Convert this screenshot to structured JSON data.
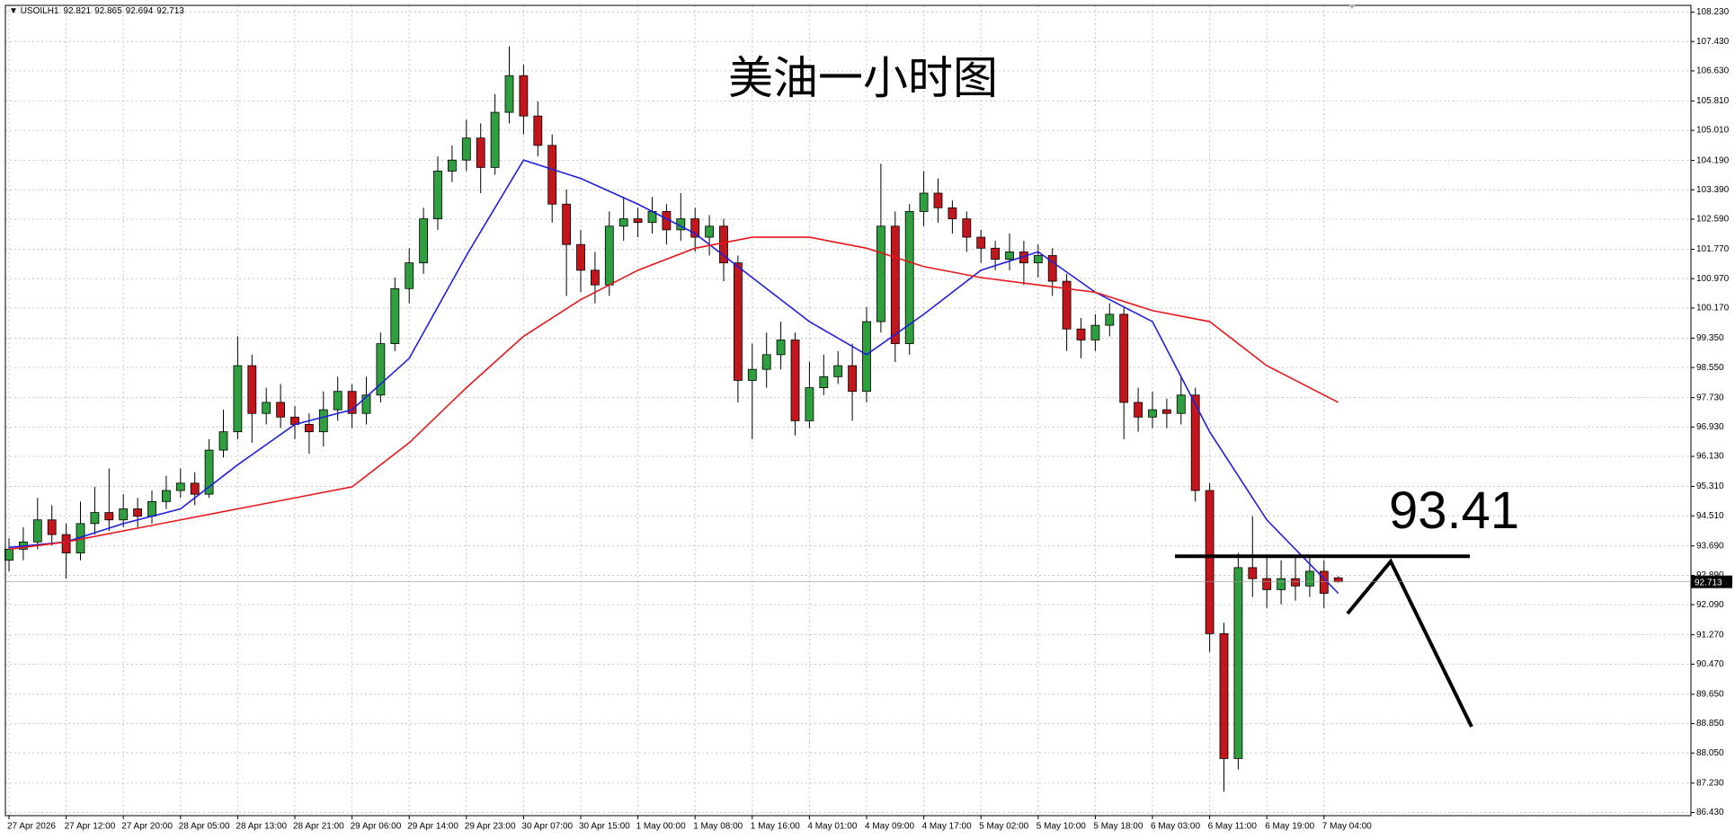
{
  "chart_data": {
    "type": "candlestick",
    "symbol": "USOILH1",
    "title": "美油一小时图",
    "categories": [
      "27 Apr 2026",
      null,
      null,
      null,
      "27 Apr 12:00",
      null,
      null,
      null,
      "27 Apr 20:00",
      null,
      null,
      null,
      "28 Apr 05:00",
      null,
      null,
      null,
      "28 Apr 13:00",
      null,
      null,
      null,
      "28 Apr 21:00",
      null,
      null,
      null,
      "29 Apr 06:00",
      null,
      null,
      null,
      "29 Apr 14:00",
      null,
      null,
      null,
      "29 Apr 23:00",
      null,
      null,
      null,
      "30 Apr 07:00",
      null,
      null,
      null,
      "30 Apr 15:00",
      null,
      null,
      null,
      "1 May 00:00",
      null,
      null,
      null,
      "1 May 08:00",
      null,
      null,
      null,
      "1 May 16:00",
      null,
      null,
      null,
      "4 May 01:00",
      null,
      null,
      null,
      "4 May 09:00",
      null,
      null,
      null,
      "4 May 17:00",
      null,
      null,
      null,
      "5 May 02:00",
      null,
      null,
      null,
      "5 May 10:00",
      null,
      null,
      null,
      "5 May 18:00",
      null,
      null,
      null,
      "6 May 03:00",
      null,
      null,
      null,
      "6 May 11:00",
      null,
      null,
      null,
      "6 May 19:00",
      null,
      null,
      null,
      "7 May 04:00",
      null
    ],
    "open": [
      93.3,
      93.6,
      93.8,
      94.4,
      94.0,
      93.5,
      94.3,
      94.6,
      94.4,
      94.7,
      94.5,
      94.9,
      95.2,
      95.4,
      95.1,
      96.3,
      96.8,
      98.6,
      97.3,
      97.6,
      97.2,
      97.0,
      96.8,
      97.4,
      97.9,
      97.3,
      97.8,
      99.2,
      100.7,
      101.4,
      102.6,
      103.9,
      104.2,
      104.8,
      104.0,
      105.5,
      106.5,
      105.4,
      104.6,
      103.0,
      101.9,
      101.2,
      100.8,
      102.4,
      102.6,
      102.5,
      102.8,
      102.3,
      102.6,
      102.1,
      102.4,
      101.4,
      98.2,
      98.5,
      98.9,
      99.3,
      97.1,
      98.0,
      98.3,
      98.6,
      97.9,
      99.8,
      102.4,
      99.2,
      102.8,
      103.3,
      102.9,
      102.6,
      102.1,
      101.8,
      101.5,
      101.7,
      101.4,
      101.6,
      100.9,
      99.6,
      99.3,
      99.7,
      100.0,
      97.6,
      97.2,
      97.4,
      97.3,
      97.8,
      95.2,
      91.3,
      87.9,
      93.1,
      92.8,
      92.5,
      92.8,
      92.6,
      93.0,
      92.821
    ],
    "high": [
      93.9,
      94.2,
      95.0,
      94.8,
      94.3,
      94.9,
      95.3,
      95.8,
      95.1,
      95.0,
      95.2,
      95.6,
      95.8,
      95.7,
      96.6,
      97.4,
      99.4,
      98.9,
      98.0,
      98.1,
      97.5,
      97.3,
      97.9,
      98.3,
      98.1,
      98.3,
      99.5,
      101.0,
      101.8,
      102.9,
      104.3,
      104.6,
      105.3,
      105.2,
      106.0,
      107.3,
      106.8,
      105.8,
      104.9,
      103.4,
      102.3,
      101.7,
      102.8,
      103.2,
      102.9,
      103.2,
      103.0,
      103.3,
      102.9,
      102.7,
      102.6,
      101.6,
      99.2,
      99.5,
      99.8,
      99.5,
      98.7,
      98.9,
      99.0,
      99.2,
      100.2,
      104.1,
      102.8,
      103.0,
      103.9,
      103.7,
      103.1,
      102.8,
      102.3,
      102.0,
      102.2,
      102.0,
      101.9,
      101.8,
      101.1,
      99.9,
      100.0,
      100.3,
      100.2,
      98.0,
      97.9,
      97.7,
      98.3,
      98.0,
      95.4,
      91.6,
      93.5,
      94.5,
      93.4,
      93.3,
      93.4,
      93.4,
      93.3,
      92.865
    ],
    "low": [
      93.0,
      93.3,
      93.6,
      93.7,
      92.8,
      93.3,
      94.0,
      94.1,
      94.2,
      94.2,
      94.3,
      94.7,
      95.0,
      94.8,
      95.0,
      96.1,
      96.6,
      96.5,
      97.0,
      96.9,
      96.6,
      96.2,
      96.4,
      97.1,
      96.9,
      97.0,
      97.6,
      99.0,
      100.3,
      101.1,
      102.3,
      103.6,
      103.9,
      103.3,
      103.8,
      105.2,
      104.9,
      104.3,
      102.5,
      100.5,
      100.6,
      100.3,
      100.5,
      102.0,
      102.1,
      102.2,
      101.9,
      102.0,
      101.7,
      101.6,
      100.9,
      97.6,
      96.6,
      98.0,
      98.5,
      96.7,
      96.9,
      97.8,
      98.1,
      97.1,
      97.6,
      99.5,
      98.7,
      98.9,
      102.4,
      102.5,
      102.2,
      101.7,
      101.4,
      101.2,
      101.2,
      100.8,
      101.0,
      100.5,
      99.0,
      98.8,
      99.0,
      99.4,
      96.6,
      96.8,
      96.9,
      96.9,
      97.0,
      94.9,
      90.8,
      87.0,
      87.6,
      92.3,
      92.0,
      92.1,
      92.2,
      92.3,
      92.0,
      92.694
    ],
    "close": [
      93.6,
      93.8,
      94.4,
      94.0,
      93.5,
      94.3,
      94.6,
      94.4,
      94.7,
      94.5,
      94.9,
      95.2,
      95.4,
      95.1,
      96.3,
      96.8,
      98.6,
      97.3,
      97.6,
      97.2,
      97.0,
      96.8,
      97.4,
      97.9,
      97.3,
      97.8,
      99.2,
      100.7,
      101.4,
      102.6,
      103.9,
      104.2,
      104.8,
      104.0,
      105.5,
      106.5,
      105.4,
      104.6,
      103.0,
      101.9,
      101.2,
      100.8,
      102.4,
      102.6,
      102.5,
      102.8,
      102.3,
      102.6,
      102.1,
      102.4,
      101.4,
      98.2,
      98.5,
      98.9,
      99.3,
      97.1,
      98.0,
      98.3,
      98.6,
      97.9,
      99.8,
      102.4,
      99.2,
      102.8,
      103.3,
      102.9,
      102.6,
      102.1,
      101.8,
      101.5,
      101.7,
      101.4,
      101.6,
      100.9,
      99.6,
      99.3,
      99.7,
      100.0,
      97.6,
      97.2,
      97.4,
      97.3,
      97.8,
      95.2,
      91.3,
      87.9,
      93.1,
      92.8,
      92.5,
      92.8,
      92.6,
      93.0,
      92.4,
      92.713
    ],
    "up_color": "#2e9e3e",
    "down_color": "#c0161c",
    "lines": [
      {
        "color": "#1f1fe0",
        "x": [
          0,
          4,
          8,
          12,
          16,
          20,
          24,
          28,
          32,
          36,
          40,
          44,
          48,
          52,
          56,
          60,
          64,
          68,
          72,
          76,
          80,
          84,
          88,
          93
        ],
        "values": [
          93.65,
          93.8,
          94.3,
          94.7,
          95.9,
          97.0,
          97.4,
          98.8,
          101.6,
          104.2,
          103.7,
          103.0,
          102.2,
          101.0,
          99.8,
          98.9,
          100.0,
          101.2,
          101.7,
          100.6,
          99.8,
          96.8,
          94.4,
          92.4
        ]
      },
      {
        "color": "#e8161a",
        "x": [
          0,
          4,
          8,
          12,
          16,
          20,
          24,
          28,
          32,
          36,
          40,
          44,
          48,
          52,
          56,
          60,
          64,
          68,
          72,
          76,
          80,
          84,
          88,
          93
        ],
        "values": [
          93.6,
          93.8,
          94.1,
          94.4,
          94.7,
          95.0,
          95.3,
          96.5,
          98.0,
          99.4,
          100.4,
          101.2,
          101.8,
          102.1,
          102.1,
          101.8,
          101.3,
          101.0,
          100.8,
          100.6,
          100.1,
          99.8,
          98.6,
          97.6
        ]
      }
    ],
    "level": 93.41,
    "ylim": [
      86.43,
      108.23
    ],
    "yticks": [
      {
        "value": 108.23,
        "label": "108.230"
      },
      {
        "value": 107.43,
        "label": "107.430"
      },
      {
        "value": 106.63,
        "label": "106.630"
      },
      {
        "value": 105.81,
        "label": "105.810"
      },
      {
        "value": 105.01,
        "label": "105.010"
      },
      {
        "value": 104.19,
        "label": "104.190"
      },
      {
        "value": 103.39,
        "label": "103.390"
      },
      {
        "value": 102.59,
        "label": "102.590"
      },
      {
        "value": 101.77,
        "label": "101.770"
      },
      {
        "value": 100.97,
        "label": "100.970"
      },
      {
        "value": 100.17,
        "label": "100.170"
      },
      {
        "value": 99.35,
        "label": "99.350"
      },
      {
        "value": 98.55,
        "label": "98.550"
      },
      {
        "value": 97.73,
        "label": "97.730"
      },
      {
        "value": 96.93,
        "label": "96.930"
      },
      {
        "value": 96.13,
        "label": "96.130"
      },
      {
        "value": 95.31,
        "label": "95.310"
      },
      {
        "value": 94.51,
        "label": "94.510"
      },
      {
        "value": 93.69,
        "label": "93.690"
      },
      {
        "value": 92.89,
        "label": "92.890"
      },
      {
        "value": 92.09,
        "label": "92.090"
      },
      {
        "value": 91.27,
        "label": "91.270"
      },
      {
        "value": 90.47,
        "label": "90.470"
      },
      {
        "value": 89.65,
        "label": "89.650"
      },
      {
        "value": 88.85,
        "label": "88.850"
      },
      {
        "value": 88.05,
        "label": "88.050"
      },
      {
        "value": 87.23,
        "label": "87.230"
      },
      {
        "value": 86.43,
        "label": "86.430"
      }
    ],
    "grid": true
  }
}
